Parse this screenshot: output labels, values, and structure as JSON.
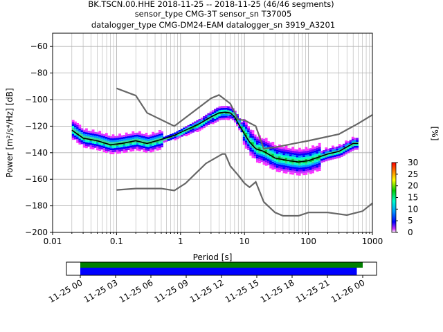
{
  "title": {
    "line1": "BK.TSCN.00.HHE   2018-11-25 -- 2018-11-25  (46/46 segments)",
    "line2": "sensor_type CMG-3T sensor_sn T37005",
    "line3": "datalogger_type CMG-DM24-EAM datalogger_sn 3919_A3201"
  },
  "chart_data": [
    {
      "type": "heatmap",
      "xlabel": "Period [s]",
      "ylabel": "Power [m²/s⁴/Hz] [dB]",
      "xscale": "log",
      "xlim": [
        0.01,
        1000
      ],
      "ylim": [
        -200,
        -50
      ],
      "x_ticks": [
        0.01,
        0.1,
        1,
        10,
        100,
        1000
      ],
      "x_tick_labels": [
        "0.01",
        "0.1",
        "1",
        "10",
        "100",
        "1000"
      ],
      "y_ticks": [
        -200,
        -180,
        -160,
        -140,
        -120,
        -100,
        -80,
        -60
      ],
      "y_tick_labels": [
        "−200",
        "−180",
        "−160",
        "−140",
        "−120",
        "−100",
        "−80",
        "−60"
      ],
      "grid": true,
      "colorbar": {
        "label": "[%]",
        "range": [
          0,
          30
        ],
        "ticks": [
          "0",
          "5",
          "10",
          "15",
          "20",
          "25",
          "30"
        ]
      },
      "series": [
        {
          "name": "",
          "color": "#000000",
          "points": [
            [
              0.02,
              -123
            ],
            [
              0.03,
              -129
            ],
            [
              0.05,
              -131
            ],
            [
              0.08,
              -134
            ],
            [
              0.12,
              -133
            ],
            [
              0.2,
              -131
            ],
            [
              0.3,
              -133
            ],
            [
              0.5,
              -130
            ],
            [
              0.8,
              -127
            ],
            [
              1.2,
              -123
            ],
            [
              2,
              -118
            ],
            [
              3,
              -113
            ],
            [
              4,
              -110
            ],
            [
              5,
              -109.5
            ],
            [
              6,
              -110
            ],
            [
              7,
              -113
            ],
            [
              8,
              -118
            ],
            [
              10,
              -126
            ],
            [
              12,
              -132
            ],
            [
              15,
              -137
            ],
            [
              20,
              -139
            ],
            [
              30,
              -144
            ],
            [
              50,
              -146
            ],
            [
              70,
              -147
            ],
            [
              100,
              -146
            ],
            [
              150,
              -143
            ],
            [
              200,
              -141
            ],
            [
              300,
              -139
            ],
            [
              500,
              -133
            ],
            [
              600,
              -133
            ]
          ]
        },
        {
          "name": "",
          "color": "#666666",
          "points": [
            [
              0.1,
              -91.5
            ],
            [
              0.2,
              -97
            ],
            [
              0.3,
              -110
            ],
            [
              0.8,
              -120
            ],
            [
              3,
              -99
            ],
            [
              4,
              -96.5
            ],
            [
              6,
              -103
            ],
            [
              8,
              -115
            ],
            [
              10,
              -115.5
            ],
            [
              15,
              -120
            ],
            [
              20,
              -137
            ],
            [
              30,
              -136
            ],
            [
              60,
              -133
            ],
            [
              100,
              -131
            ],
            [
              300,
              -126
            ],
            [
              600,
              -118
            ],
            [
              1000,
              -111.5
            ]
          ]
        },
        {
          "name": "",
          "color": "#666666",
          "points": [
            [
              0.1,
              -168
            ],
            [
              0.2,
              -167
            ],
            [
              0.5,
              -167
            ],
            [
              0.8,
              -168.5
            ],
            [
              1.2,
              -163
            ],
            [
              2.5,
              -148
            ],
            [
              4.5,
              -141
            ],
            [
              5,
              -141
            ],
            [
              6,
              -150
            ],
            [
              8,
              -157
            ],
            [
              10,
              -163
            ],
            [
              12,
              -166
            ],
            [
              15,
              -162
            ],
            [
              20,
              -177
            ],
            [
              30,
              -185
            ],
            [
              40,
              -187.5
            ],
            [
              70,
              -187.5
            ],
            [
              100,
              -185
            ],
            [
              200,
              -185
            ],
            [
              400,
              -187
            ],
            [
              700,
              -184
            ],
            [
              1000,
              -178
            ]
          ]
        }
      ]
    },
    {
      "type": "bar",
      "title": "",
      "x_tick_labels": [
        "11-25 00",
        "11-25 03",
        "11-25 06",
        "11-25 09",
        "11-25 12",
        "11-25 15",
        "11-25 18",
        "11-25 21",
        "11-26 00"
      ],
      "series": [
        {
          "name": "",
          "color": "#008000",
          "start": "11-25 00",
          "end": "11-26 00"
        },
        {
          "name": "",
          "color": "#0000ff",
          "start": "11-25 00",
          "end": "11-25 23.5"
        }
      ]
    }
  ]
}
